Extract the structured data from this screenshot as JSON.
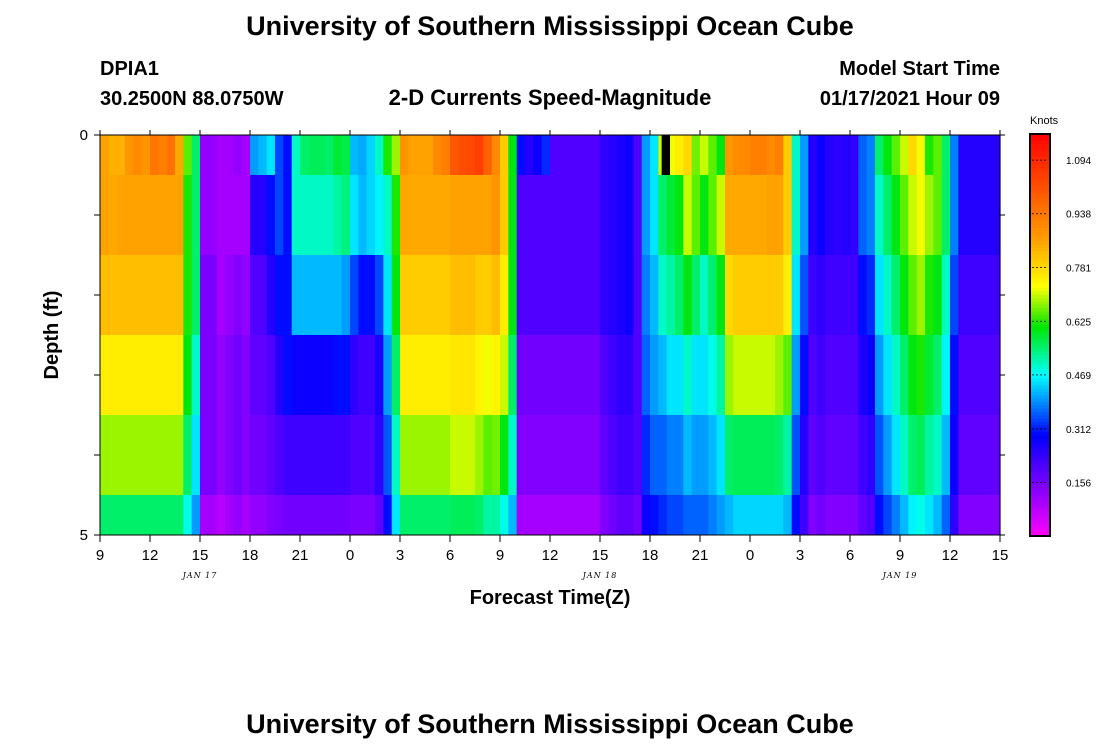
{
  "title": "University of Southern Mississippi Ocean Cube",
  "footer_title": "University of Southern Mississippi Ocean Cube",
  "station": {
    "id": "DPIA1",
    "coords": "30.2500N 88.0750W"
  },
  "model": {
    "label": "Model Start Time",
    "time": "01/17/2021 Hour 09"
  },
  "chart_data": {
    "type": "heatmap",
    "title": "2-D Currents Speed-Magnitude",
    "xlabel": "Forecast Time(Z)",
    "ylabel": "Depth (ft)",
    "x_tick_labels": [
      "9",
      "12",
      "15",
      "18",
      "21",
      "0",
      "3",
      "6",
      "9",
      "12",
      "15",
      "18",
      "21",
      "0",
      "3",
      "6",
      "9",
      "12",
      "15"
    ],
    "y_tick_labels": [
      "0",
      "5"
    ],
    "date_labels": [
      "JAN 17",
      "JAN 18",
      "JAN 19"
    ],
    "colorbar": {
      "unit": "Knots",
      "range": [
        0,
        1.17
      ],
      "ticks": [
        "1.094",
        "0.938",
        "0.781",
        "0.625",
        "0.469",
        "0.312",
        "0.156"
      ],
      "tick_values": [
        1.094,
        0.938,
        0.781,
        0.625,
        0.469,
        0.312,
        0.156
      ]
    },
    "missing_marker": {
      "hour_start": 33.7,
      "hour_end": 34.2,
      "depth_start": 0,
      "depth_end": 0.5
    },
    "x_start_hour": 0,
    "x_end_hour": 54,
    "depth_edges_ft": [
      0,
      0.5,
      1.5,
      2.5,
      3.5,
      4.5,
      5
    ],
    "rows": [
      [
        0.86,
        0.84,
        0.84,
        0.88,
        0.9,
        0.88,
        0.94,
        0.92,
        0.95,
        0.85,
        0.65,
        0.55,
        0.12,
        0.12,
        0.1,
        0.1,
        0.12,
        0.1,
        0.4,
        0.42,
        0.45,
        0.34,
        0.3,
        0.5,
        0.55,
        0.56,
        0.56,
        0.55,
        0.58,
        0.57,
        0.42,
        0.41,
        0.44,
        0.5,
        0.62,
        0.68,
        0.88,
        0.86,
        0.86,
        0.86,
        0.9,
        0.92,
        1.0,
        1.02,
        1.03,
        1.05,
        0.98,
        0.9,
        0.8,
        0.6,
        0.3,
        0.25,
        0.28,
        0.32,
        0.2,
        0.2,
        0.2,
        0.2,
        0.2,
        0.2,
        0.24,
        0.25,
        0.26,
        0.28,
        0.2,
        0.4,
        0.45,
        0.7,
        0.72,
        0.75,
        0.78,
        0.66,
        0.7,
        0.65,
        0.6,
        0.88,
        0.9,
        0.9,
        0.92,
        0.92,
        0.9,
        0.92,
        0.8,
        0.5,
        0.4,
        0.25,
        0.28,
        0.25,
        0.24,
        0.25,
        0.24,
        0.36,
        0.38,
        0.55,
        0.6,
        0.65,
        0.7,
        0.78,
        0.72,
        0.62,
        0.65,
        0.55,
        0.38,
        0.25,
        0.25,
        0.25,
        0.25,
        0.25
      ],
      [
        0.86,
        0.85,
        0.86,
        0.86,
        0.86,
        0.86,
        0.86,
        0.86,
        0.86,
        0.86,
        0.62,
        0.55,
        0.12,
        0.12,
        0.1,
        0.1,
        0.1,
        0.1,
        0.25,
        0.25,
        0.3,
        0.34,
        0.3,
        0.5,
        0.5,
        0.5,
        0.5,
        0.5,
        0.52,
        0.54,
        0.45,
        0.42,
        0.44,
        0.46,
        0.5,
        0.62,
        0.85,
        0.85,
        0.85,
        0.85,
        0.85,
        0.85,
        0.86,
        0.86,
        0.86,
        0.86,
        0.86,
        0.88,
        0.8,
        0.6,
        0.2,
        0.2,
        0.2,
        0.2,
        0.2,
        0.2,
        0.2,
        0.2,
        0.2,
        0.2,
        0.24,
        0.25,
        0.26,
        0.28,
        0.2,
        0.4,
        0.45,
        0.55,
        0.58,
        0.6,
        0.7,
        0.65,
        0.6,
        0.65,
        0.7,
        0.85,
        0.85,
        0.85,
        0.85,
        0.85,
        0.86,
        0.86,
        0.8,
        0.5,
        0.4,
        0.25,
        0.28,
        0.25,
        0.24,
        0.25,
        0.24,
        0.36,
        0.38,
        0.5,
        0.55,
        0.6,
        0.65,
        0.7,
        0.72,
        0.68,
        0.65,
        0.55,
        0.38,
        0.25,
        0.25,
        0.25,
        0.25,
        0.25
      ],
      [
        0.82,
        0.82,
        0.82,
        0.82,
        0.82,
        0.82,
        0.82,
        0.82,
        0.82,
        0.82,
        0.62,
        0.55,
        0.15,
        0.15,
        0.1,
        0.12,
        0.14,
        0.12,
        0.2,
        0.2,
        0.25,
        0.3,
        0.3,
        0.42,
        0.42,
        0.42,
        0.42,
        0.42,
        0.42,
        0.4,
        0.34,
        0.3,
        0.3,
        0.34,
        0.45,
        0.6,
        0.8,
        0.8,
        0.8,
        0.8,
        0.8,
        0.8,
        0.82,
        0.82,
        0.82,
        0.8,
        0.8,
        0.82,
        0.75,
        0.6,
        0.2,
        0.2,
        0.2,
        0.2,
        0.2,
        0.2,
        0.2,
        0.2,
        0.2,
        0.2,
        0.24,
        0.25,
        0.26,
        0.28,
        0.2,
        0.38,
        0.42,
        0.5,
        0.52,
        0.55,
        0.6,
        0.55,
        0.5,
        0.55,
        0.6,
        0.78,
        0.8,
        0.8,
        0.8,
        0.8,
        0.8,
        0.8,
        0.75,
        0.45,
        0.35,
        0.22,
        0.24,
        0.22,
        0.22,
        0.22,
        0.22,
        0.3,
        0.32,
        0.45,
        0.5,
        0.55,
        0.6,
        0.65,
        0.68,
        0.62,
        0.6,
        0.5,
        0.34,
        0.22,
        0.22,
        0.22,
        0.22,
        0.22
      ],
      [
        0.75,
        0.75,
        0.75,
        0.75,
        0.75,
        0.75,
        0.75,
        0.75,
        0.75,
        0.75,
        0.6,
        0.5,
        0.15,
        0.15,
        0.12,
        0.14,
        0.16,
        0.14,
        0.18,
        0.18,
        0.2,
        0.25,
        0.3,
        0.28,
        0.28,
        0.28,
        0.28,
        0.28,
        0.3,
        0.3,
        0.24,
        0.22,
        0.22,
        0.26,
        0.4,
        0.55,
        0.75,
        0.75,
        0.75,
        0.75,
        0.75,
        0.75,
        0.76,
        0.76,
        0.76,
        0.74,
        0.72,
        0.74,
        0.7,
        0.55,
        0.16,
        0.16,
        0.16,
        0.16,
        0.16,
        0.16,
        0.16,
        0.16,
        0.16,
        0.16,
        0.2,
        0.22,
        0.24,
        0.24,
        0.2,
        0.36,
        0.4,
        0.42,
        0.45,
        0.45,
        0.5,
        0.45,
        0.45,
        0.48,
        0.52,
        0.68,
        0.7,
        0.7,
        0.7,
        0.7,
        0.7,
        0.68,
        0.65,
        0.4,
        0.3,
        0.2,
        0.22,
        0.2,
        0.2,
        0.2,
        0.2,
        0.26,
        0.28,
        0.4,
        0.45,
        0.5,
        0.55,
        0.6,
        0.62,
        0.58,
        0.55,
        0.46,
        0.3,
        0.2,
        0.2,
        0.2,
        0.2,
        0.2
      ],
      [
        0.68,
        0.68,
        0.68,
        0.68,
        0.68,
        0.68,
        0.68,
        0.68,
        0.68,
        0.68,
        0.55,
        0.45,
        0.15,
        0.15,
        0.12,
        0.14,
        0.16,
        0.14,
        0.16,
        0.16,
        0.18,
        0.2,
        0.22,
        0.22,
        0.22,
        0.22,
        0.22,
        0.22,
        0.22,
        0.22,
        0.2,
        0.2,
        0.2,
        0.24,
        0.35,
        0.5,
        0.68,
        0.68,
        0.68,
        0.68,
        0.68,
        0.68,
        0.7,
        0.7,
        0.7,
        0.68,
        0.65,
        0.66,
        0.6,
        0.5,
        0.14,
        0.14,
        0.14,
        0.14,
        0.14,
        0.14,
        0.14,
        0.14,
        0.14,
        0.14,
        0.18,
        0.2,
        0.22,
        0.22,
        0.2,
        0.32,
        0.36,
        0.36,
        0.38,
        0.38,
        0.42,
        0.4,
        0.4,
        0.42,
        0.45,
        0.55,
        0.56,
        0.56,
        0.56,
        0.56,
        0.56,
        0.55,
        0.52,
        0.35,
        0.25,
        0.18,
        0.2,
        0.18,
        0.18,
        0.18,
        0.18,
        0.22,
        0.24,
        0.35,
        0.4,
        0.45,
        0.5,
        0.55,
        0.56,
        0.52,
        0.5,
        0.42,
        0.28,
        0.18,
        0.18,
        0.18,
        0.18,
        0.18
      ],
      [
        0.55,
        0.55,
        0.55,
        0.55,
        0.55,
        0.55,
        0.55,
        0.55,
        0.55,
        0.55,
        0.48,
        0.4,
        0.1,
        0.1,
        0.08,
        0.1,
        0.12,
        0.1,
        0.12,
        0.12,
        0.14,
        0.15,
        0.16,
        0.16,
        0.16,
        0.16,
        0.16,
        0.16,
        0.16,
        0.16,
        0.15,
        0.15,
        0.15,
        0.18,
        0.3,
        0.45,
        0.55,
        0.55,
        0.55,
        0.55,
        0.55,
        0.55,
        0.56,
        0.56,
        0.56,
        0.55,
        0.52,
        0.52,
        0.48,
        0.42,
        0.1,
        0.1,
        0.1,
        0.1,
        0.1,
        0.1,
        0.1,
        0.1,
        0.1,
        0.1,
        0.14,
        0.16,
        0.18,
        0.18,
        0.16,
        0.28,
        0.3,
        0.32,
        0.34,
        0.34,
        0.36,
        0.36,
        0.36,
        0.38,
        0.4,
        0.42,
        0.44,
        0.44,
        0.44,
        0.44,
        0.44,
        0.44,
        0.42,
        0.3,
        0.22,
        0.14,
        0.16,
        0.14,
        0.14,
        0.14,
        0.14,
        0.18,
        0.2,
        0.3,
        0.34,
        0.38,
        0.42,
        0.46,
        0.48,
        0.45,
        0.42,
        0.36,
        0.24,
        0.14,
        0.14,
        0.14,
        0.14,
        0.14
      ]
    ]
  }
}
